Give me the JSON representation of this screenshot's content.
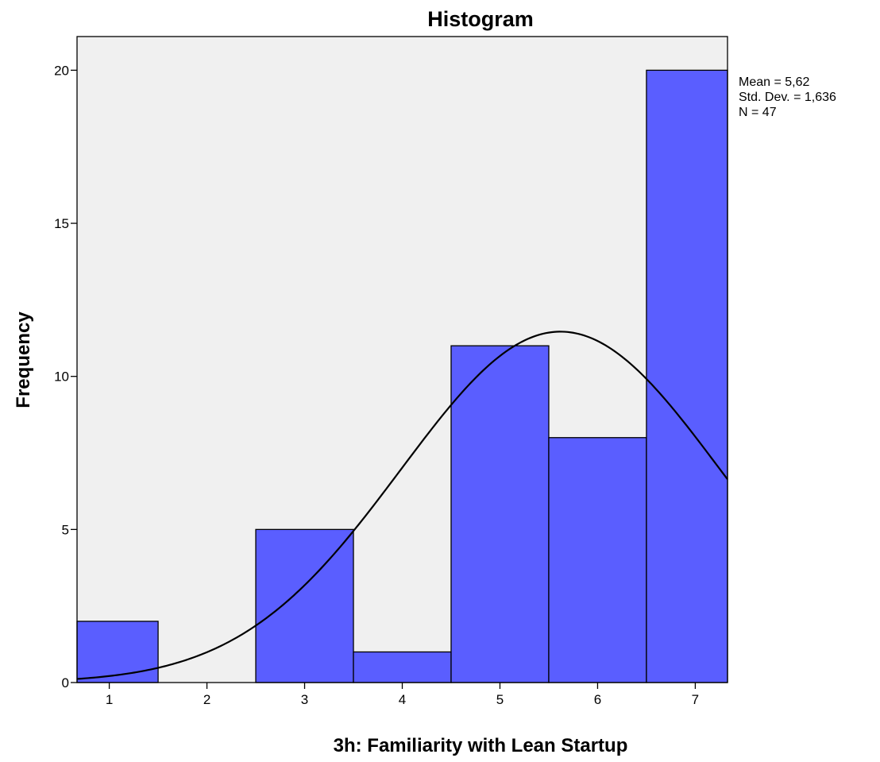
{
  "chart_data": {
    "type": "bar",
    "title": "Histogram",
    "xlabel": "3h: Familiarity with Lean Startup",
    "ylabel": "Frequency",
    "categories": [
      "1",
      "2",
      "3",
      "4",
      "5",
      "6",
      "7"
    ],
    "values": [
      2,
      0,
      5,
      1,
      11,
      8,
      20
    ],
    "x_ticks": [
      1,
      2,
      3,
      4,
      5,
      6,
      7
    ],
    "y_ticks": [
      0,
      5,
      10,
      15,
      20
    ],
    "xlim": [
      0.67,
      7.33
    ],
    "ylim": [
      0,
      21.1
    ],
    "normal_curve": {
      "mean": 5.62,
      "std_dev": 1.636,
      "n": 47,
      "bin_width": 1
    },
    "stats_text": [
      "Mean = 5,62",
      "Std. Dev. = 1,636",
      "N = 47"
    ],
    "legend_position": "right",
    "grid": false,
    "colors": {
      "bar_fill": "#5a5eff",
      "plot_background": "#f0f0f0",
      "bar_stroke": "#000000"
    }
  }
}
